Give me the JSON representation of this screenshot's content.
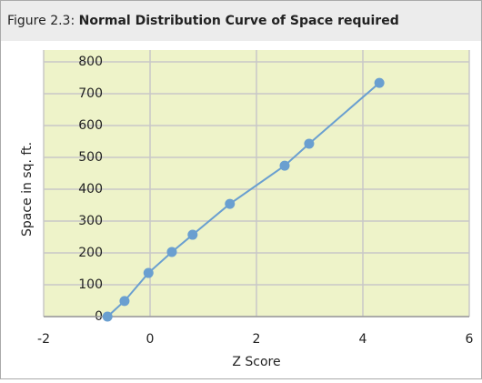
{
  "chart_data": {
    "type": "line",
    "figure_label": "Figure 2.3:",
    "title": "Normal Distribution Curve of Space required",
    "xlabel": "Z Score",
    "ylabel": "Space in sq.  ft.",
    "x": [
      -0.8,
      -0.48,
      -0.03,
      0.41,
      0.8,
      1.5,
      2.53,
      2.99,
      4.31
    ],
    "series": [
      {
        "name": "Space",
        "color": "#6a9fd0",
        "values": [
          0,
          49,
          137,
          203,
          257,
          354,
          474,
          543,
          734
        ]
      }
    ],
    "xlim": [
      -2,
      6
    ],
    "xticks": [
      -2,
      0,
      2,
      4,
      6
    ],
    "ylim": [
      0,
      800
    ],
    "yticks": [
      0,
      100,
      200,
      300,
      400,
      500,
      600,
      700,
      800
    ],
    "grid": true
  }
}
